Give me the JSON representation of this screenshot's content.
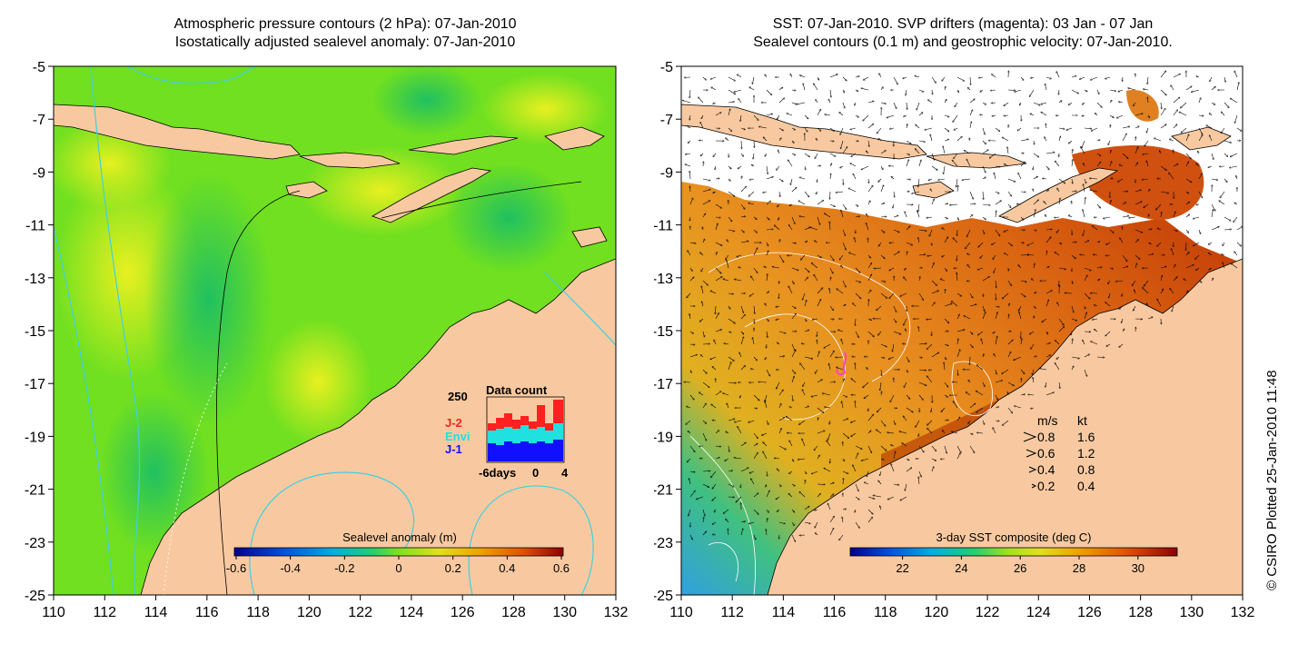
{
  "left_panel": {
    "title_line1": "Atmospheric pressure contours (2 hPa): 07-Jan-2010",
    "title_line2": "Isostatically adjusted sealevel anomaly: 07-Jan-2010",
    "y_ticks": [
      "-5",
      "-7",
      "-9",
      "-11",
      "-13",
      "-15",
      "-17",
      "-19",
      "-21",
      "-23",
      "-25"
    ],
    "x_ticks": [
      "110",
      "112",
      "114",
      "116",
      "118",
      "120",
      "122",
      "124",
      "126",
      "128",
      "130",
      "132"
    ],
    "colorbar_label": "Sealevel anomaly (m)",
    "colorbar_ticks": [
      "-0.6",
      "-0.4",
      "-0.2",
      "0",
      "0.2",
      "0.4",
      "0.6"
    ],
    "data_count": {
      "title": "Data count",
      "ymax_label": "250",
      "series_labels": [
        "J-2",
        "Envi",
        "J-1"
      ],
      "series_colors": [
        "#ff2020",
        "#20e0e0",
        "#1010ff"
      ],
      "x_labels": [
        "-6days",
        "0",
        "4"
      ]
    }
  },
  "right_panel": {
    "title_line1": "SST: 07-Jan-2010. SVP drifters (magenta): 03 Jan - 07 Jan",
    "title_line2": "Sealevel contours (0.1 m) and geostrophic velocity: 07-Jan-2010.",
    "y_ticks": [
      "-5",
      "-7",
      "-9",
      "-11",
      "-13",
      "-15",
      "-17",
      "-19",
      "-21",
      "-23",
      "-25"
    ],
    "x_ticks": [
      "110",
      "112",
      "114",
      "116",
      "118",
      "120",
      "122",
      "124",
      "126",
      "128",
      "130",
      "132"
    ],
    "colorbar_label": "3-day SST composite (deg C)",
    "colorbar_ticks": [
      "22",
      "24",
      "26",
      "28",
      "30"
    ],
    "speed_legend": {
      "header_ms": "m/s",
      "header_kt": "kt",
      "rows": [
        {
          "ms": "0.8",
          "kt": "1.6"
        },
        {
          "ms": "0.6",
          "kt": "1.2"
        },
        {
          "ms": "0.4",
          "kt": "0.8"
        },
        {
          "ms": "0.2",
          "kt": "0.4"
        }
      ]
    }
  },
  "credit": "© CSIRO Plotted 25-Jan-2010 11:48",
  "colors": {
    "land": "#f8c9a0",
    "contour_cyan": "#40d0e0",
    "drifter_magenta": "#ff40c0"
  }
}
